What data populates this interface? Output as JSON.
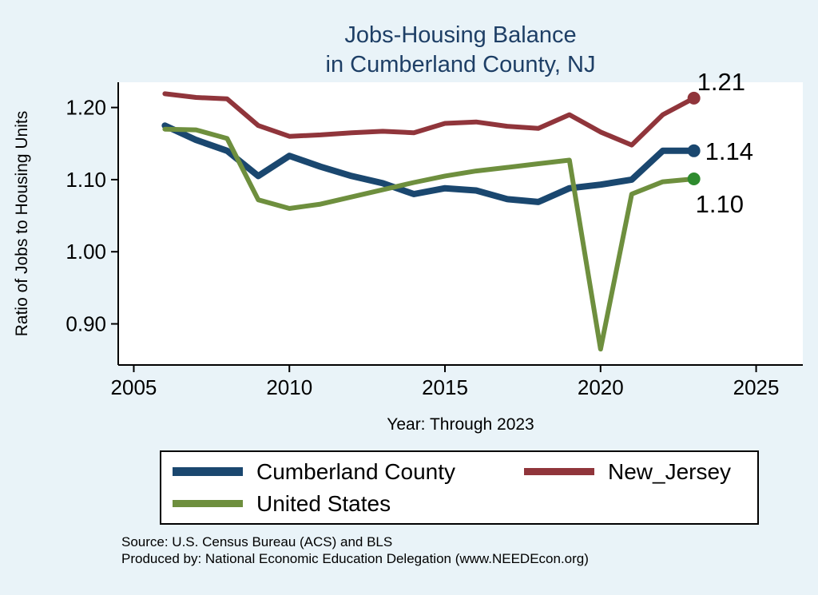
{
  "title": {
    "line1": "Jobs-Housing Balance",
    "line2": "in Cumberland County, NJ"
  },
  "chart_data": {
    "type": "line",
    "x": [
      2006,
      2007,
      2008,
      2009,
      2010,
      2011,
      2012,
      2013,
      2014,
      2015,
      2016,
      2017,
      2018,
      2019,
      2020,
      2021,
      2022,
      2023
    ],
    "series": [
      {
        "name": "Cumberland County",
        "color": "#1a476f",
        "width": 8,
        "values": [
          1.175,
          1.155,
          1.14,
          1.105,
          1.133,
          1.118,
          1.105,
          1.095,
          1.08,
          1.088,
          1.085,
          1.073,
          1.069,
          1.088,
          1.093,
          1.1,
          1.14,
          1.14
        ],
        "end_label": "1.14",
        "end_label_offset": [
          14,
          11
        ]
      },
      {
        "name": "New_Jersey",
        "color": "#90353b",
        "width": 6,
        "values": [
          1.219,
          1.214,
          1.212,
          1.175,
          1.16,
          1.162,
          1.165,
          1.167,
          1.165,
          1.178,
          1.18,
          1.174,
          1.171,
          1.19,
          1.166,
          1.148,
          1.19,
          1.213
        ],
        "end_label": "1.21",
        "end_label_offset": [
          4,
          -10
        ]
      },
      {
        "name": "United States",
        "color": "#6e8f3e",
        "marker_color": "#2e8b2e",
        "width": 6,
        "values": [
          1.17,
          1.169,
          1.157,
          1.072,
          1.06,
          1.066,
          1.076,
          1.086,
          1.096,
          1.105,
          1.112,
          1.117,
          1.122,
          1.127,
          0.865,
          1.08,
          1.097,
          1.101
        ],
        "end_label": "1.10",
        "end_label_offset": [
          2,
          42
        ]
      }
    ],
    "title": "Jobs-Housing Balance in Cumberland County, NJ",
    "xlabel": "Year: Through 2023",
    "ylabel": "Ratio of Jobs to Housing Units",
    "xticks": [
      2005,
      2010,
      2015,
      2020,
      2025
    ],
    "xtick_labels": [
      "2005",
      "2010",
      "2015",
      "2020",
      "2025"
    ],
    "yticks": [
      0.9,
      1.0,
      1.1,
      1.2
    ],
    "ytick_labels": [
      "0.90",
      "1.00",
      "1.10",
      "1.20"
    ],
    "xlim": [
      2004.5,
      2026.5
    ],
    "ylim": [
      0.843,
      1.235
    ],
    "grid": false,
    "legend_position": "bottom"
  },
  "footer": {
    "source": "Source: U.S. Census Bureau (ACS) and BLS",
    "produced": "Produced by: National Economic Education Delegation (www.NEEDEcon.org)"
  }
}
